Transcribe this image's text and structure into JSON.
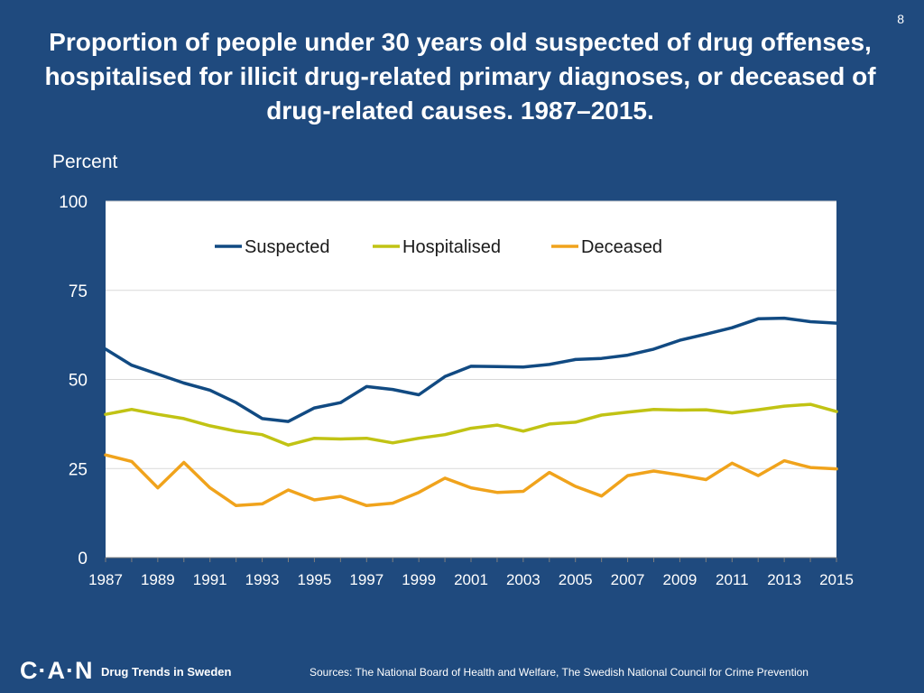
{
  "page": {
    "slide_number": "8",
    "footer": {
      "logo": "C·A·N",
      "tagline": "Drug Trends in Sweden",
      "sources": "Sources: The National Board of Health and Welfare, The Swedish National Council for Crime Prevention"
    }
  },
  "chart_data": {
    "type": "line",
    "title": "Proportion of people under 30 years old suspected of drug offenses, hospitalised for illicit drug-related primary diagnoses, or deceased of drug-related causes. 1987–2015.",
    "ylabel": "Percent",
    "xlabel": "",
    "ylim": [
      0,
      100
    ],
    "yticks": [
      0,
      25,
      50,
      75,
      100
    ],
    "xlim": [
      1987,
      2015
    ],
    "xticks": [
      1987,
      1989,
      1991,
      1993,
      1995,
      1997,
      1999,
      2001,
      2003,
      2005,
      2007,
      2009,
      2011,
      2013,
      2015
    ],
    "grid": true,
    "legend_position": "top-center",
    "x": [
      1987,
      1988,
      1989,
      1990,
      1991,
      1992,
      1993,
      1994,
      1995,
      1996,
      1997,
      1998,
      1999,
      2000,
      2001,
      2002,
      2003,
      2004,
      2005,
      2006,
      2007,
      2008,
      2009,
      2010,
      2011,
      2012,
      2013,
      2014,
      2015
    ],
    "series": [
      {
        "name": "Suspected",
        "color": "#114a82",
        "values": [
          58.5,
          54,
          51.5,
          49,
          47,
          43.5,
          39,
          38.2,
          42,
          43.5,
          48,
          47.2,
          45.7,
          50.8,
          53.7,
          53.6,
          53.5,
          54.2,
          55.6,
          55.9,
          56.8,
          58.5,
          61,
          62.7,
          64.5,
          67,
          67.2,
          66.2,
          65.8
        ]
      },
      {
        "name": "Hospitalised",
        "color": "#c1c314",
        "values": [
          40.2,
          41.6,
          40.2,
          39,
          37,
          35.5,
          34.5,
          31.6,
          33.5,
          33.3,
          33.5,
          32.2,
          33.5,
          34.5,
          36.3,
          37.2,
          35.5,
          37.5,
          38,
          40,
          40.8,
          41.6,
          41.4,
          41.5,
          40.6,
          41.5,
          42.5,
          43,
          41
        ]
      },
      {
        "name": "Deceased",
        "color": "#f0a31c",
        "values": [
          28.8,
          27,
          19.6,
          26.7,
          19.6,
          14.6,
          15.1,
          19,
          16.2,
          17.2,
          14.6,
          15.3,
          18.3,
          22.3,
          19.6,
          18.3,
          18.6,
          23.9,
          20,
          17.3,
          23,
          24.3,
          23.2,
          21.9,
          26.5,
          23,
          27.2,
          25.3,
          24.9
        ]
      }
    ]
  }
}
